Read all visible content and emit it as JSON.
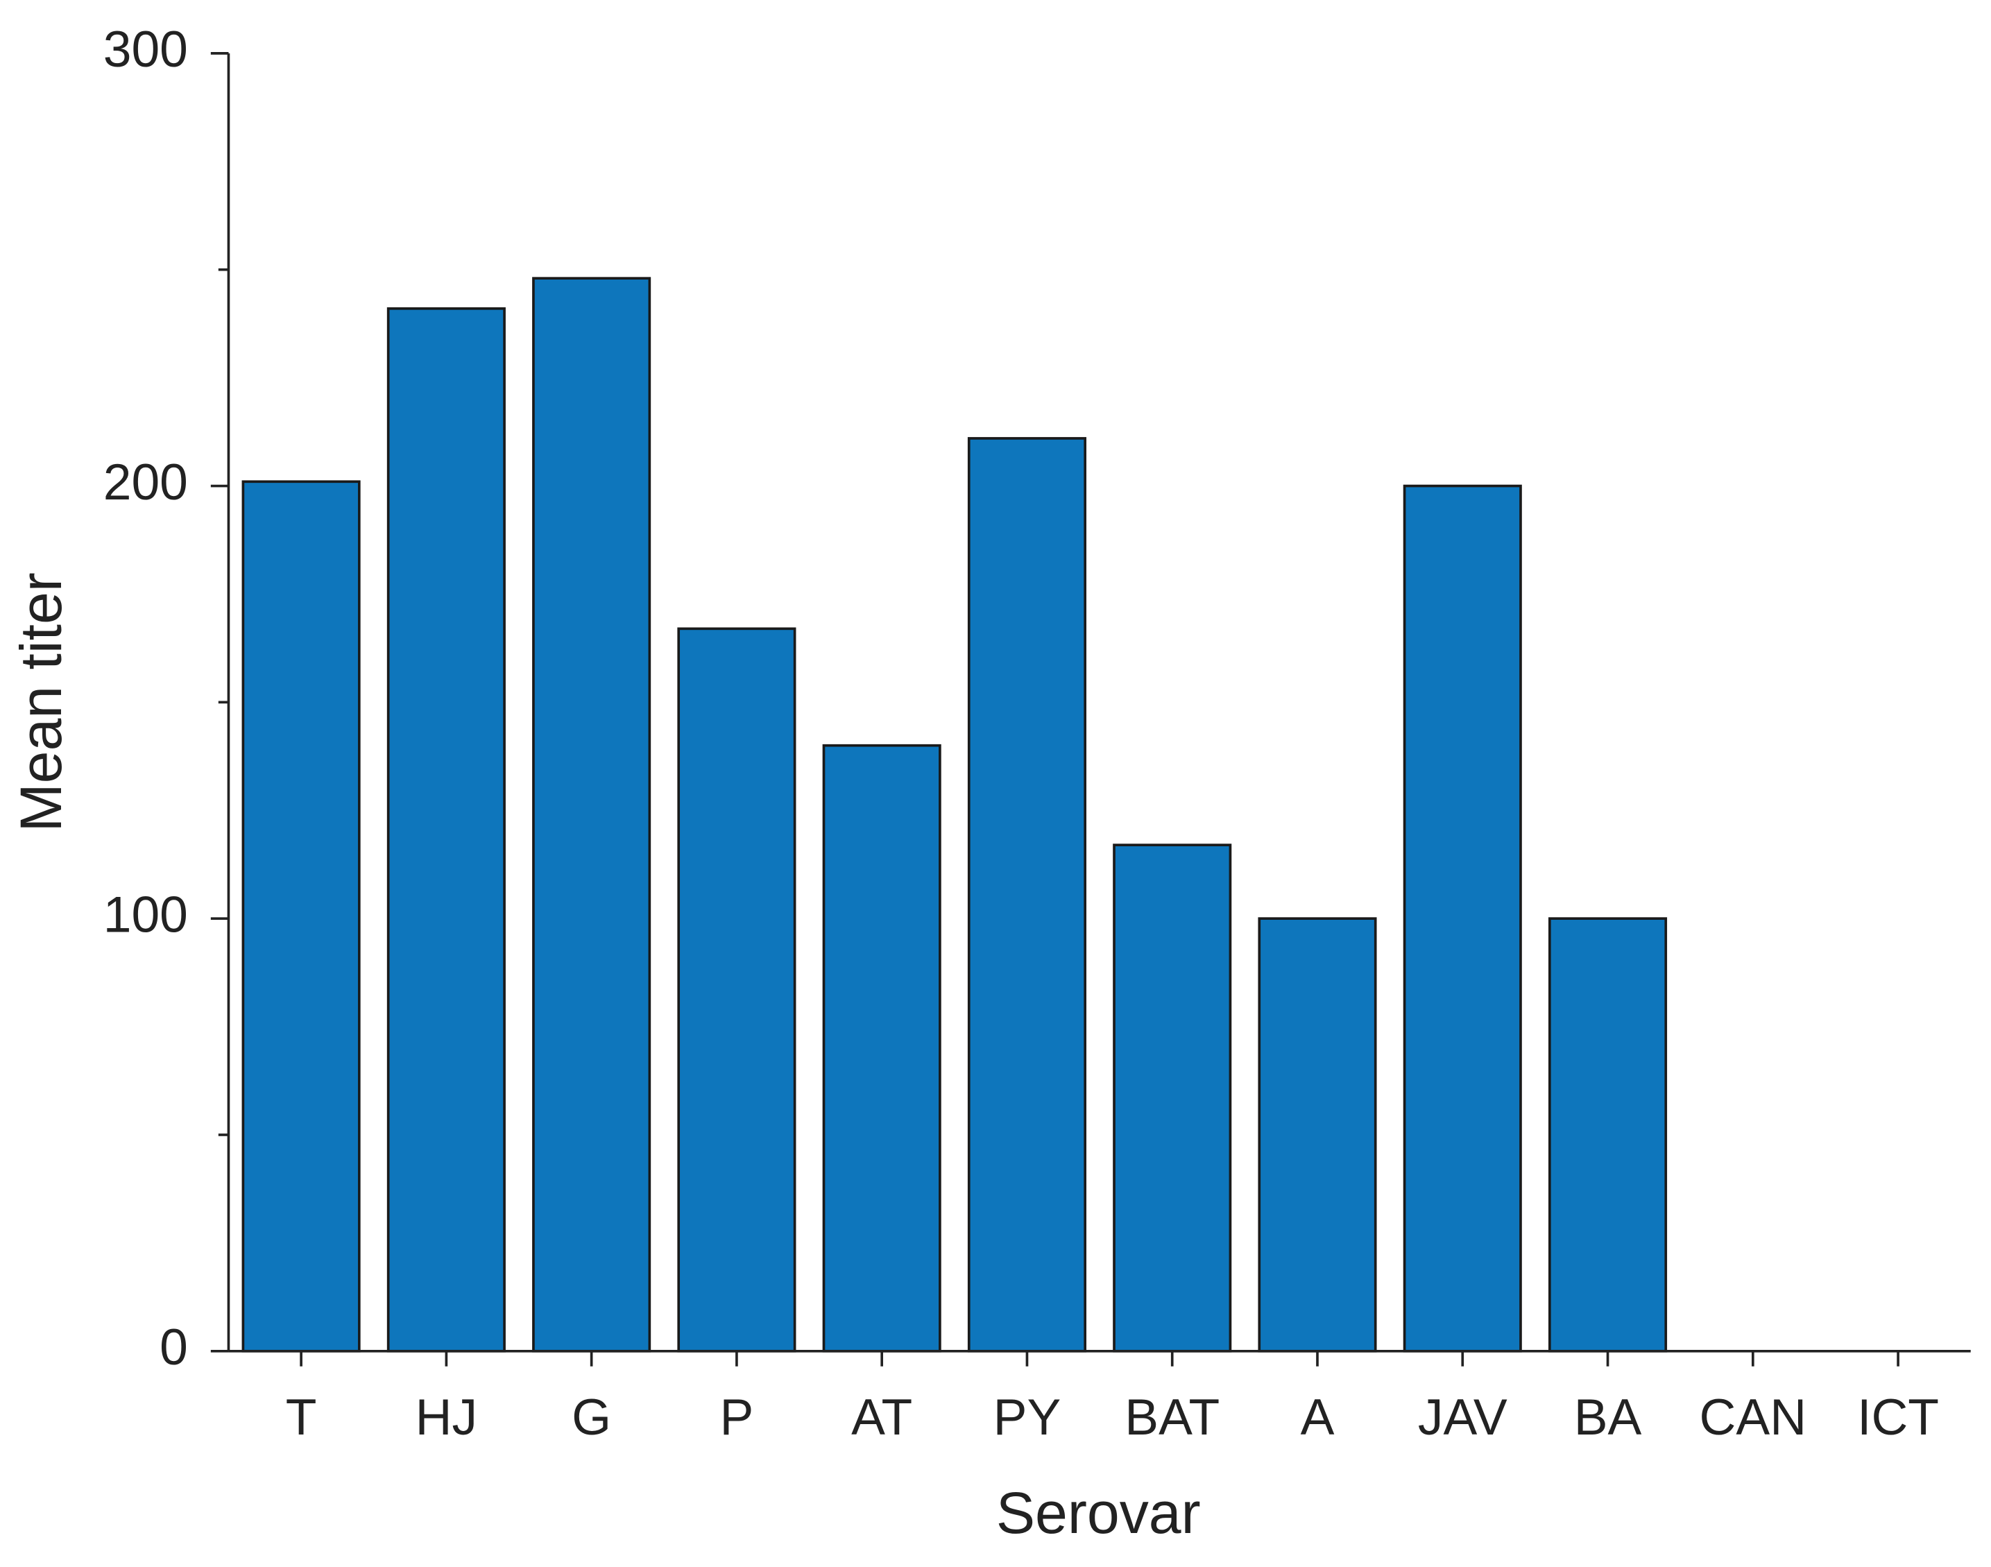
{
  "chart_data": {
    "type": "bar",
    "x_label": "Serovar",
    "y_label": "Mean titer",
    "categories": [
      "T",
      "HJ",
      "G",
      "P",
      "AT",
      "PY",
      "BAT",
      "A",
      "JAV",
      "BA",
      "CAN",
      "ICT"
    ],
    "values": [
      201,
      241,
      248,
      167,
      140,
      211,
      117,
      100,
      200,
      100,
      0,
      0
    ],
    "color": "#0e76bc",
    "ylim": [
      0,
      300
    ],
    "yticks": [
      0,
      100,
      200,
      300
    ],
    "minor_yticks": [
      50,
      150,
      250
    ],
    "grid": false
  }
}
